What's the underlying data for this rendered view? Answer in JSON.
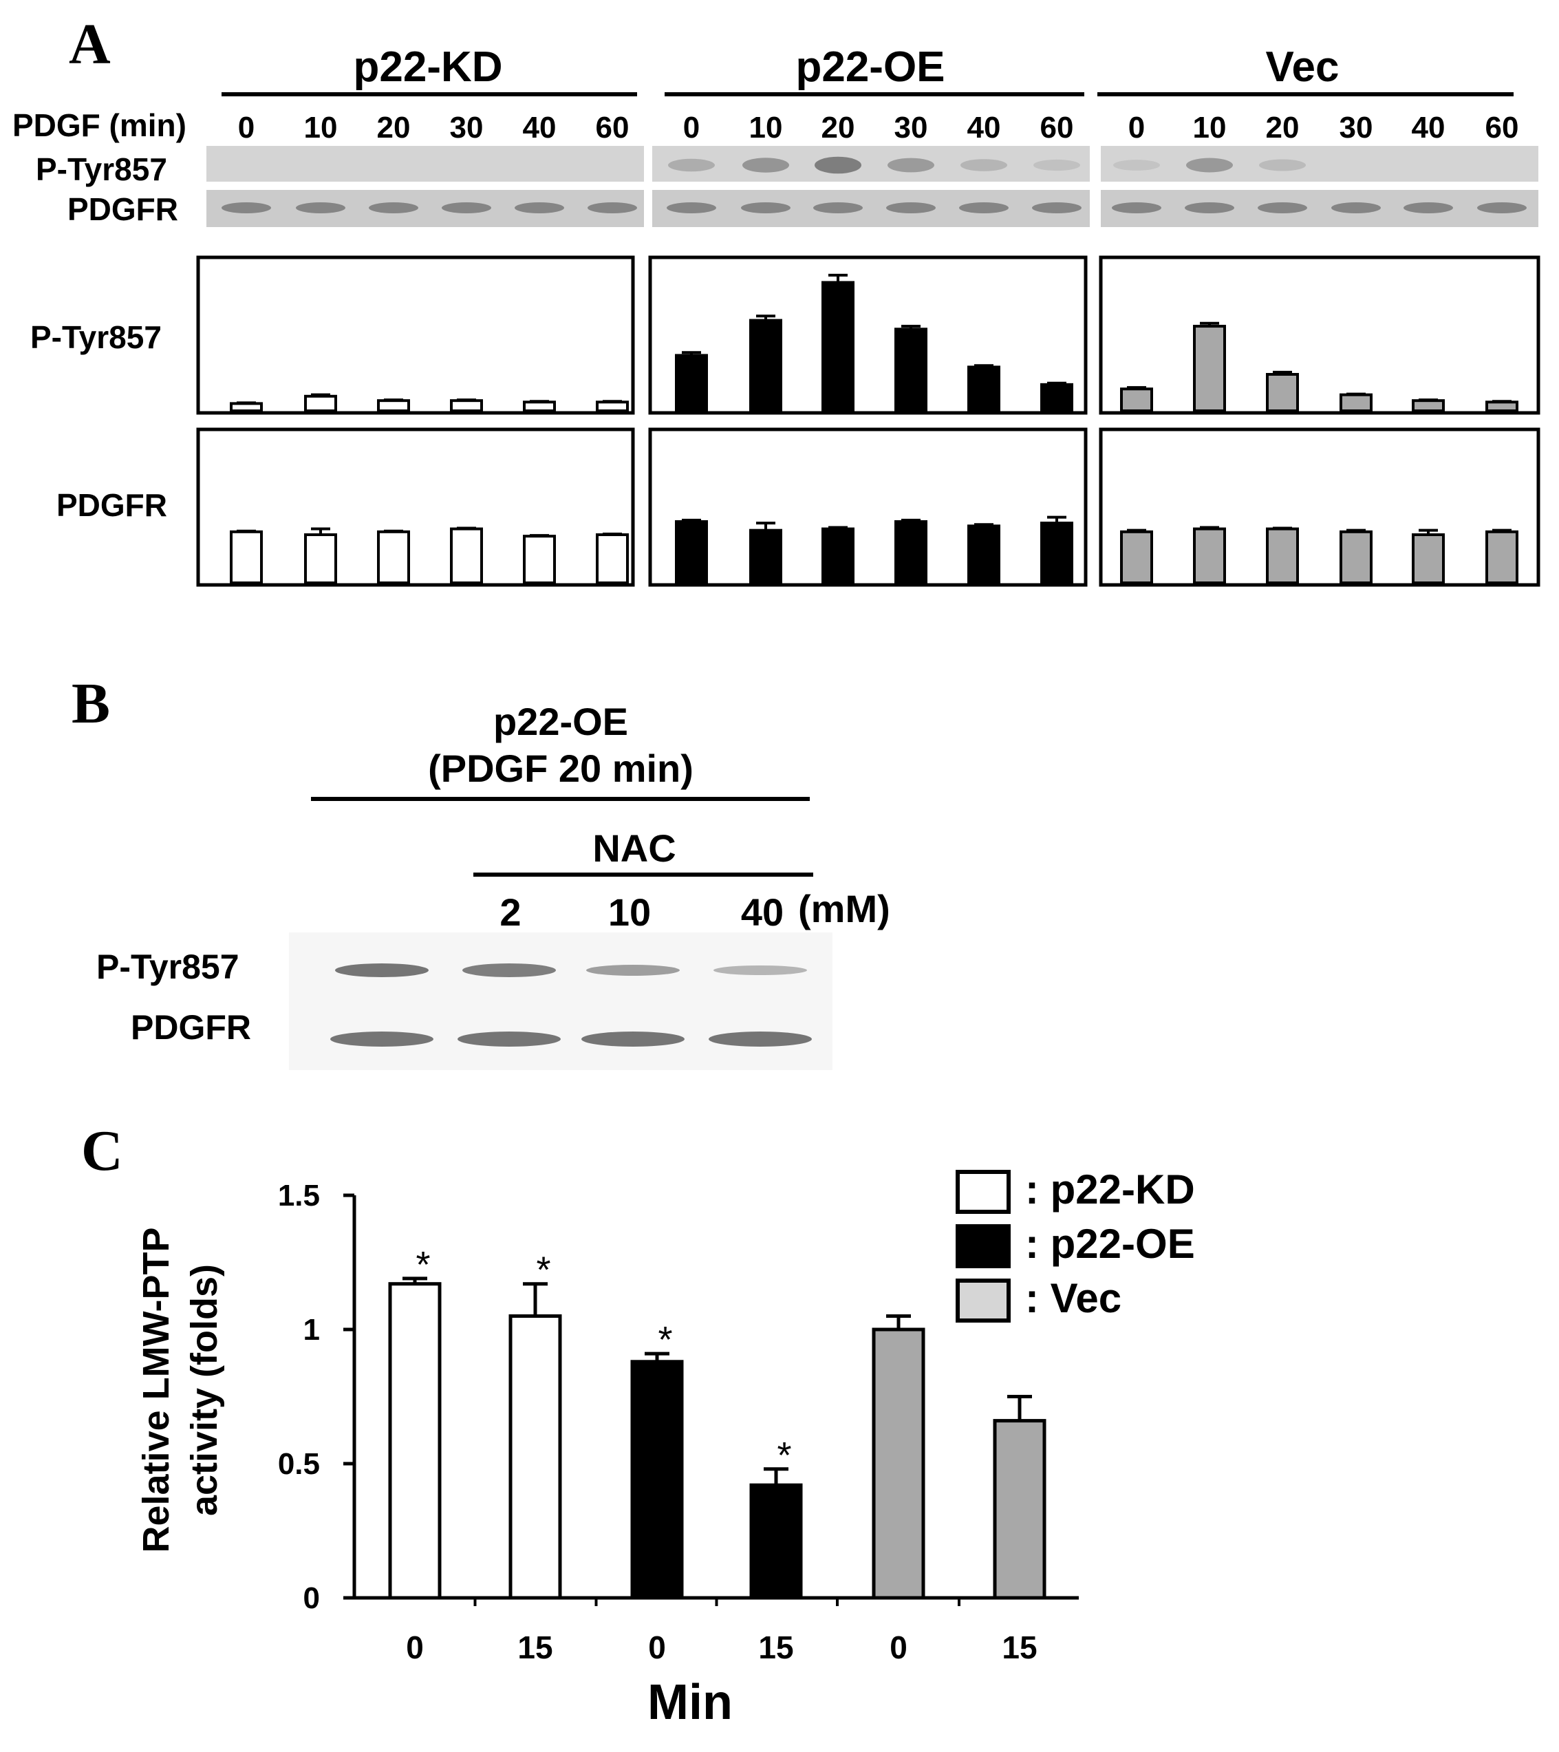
{
  "panelA": {
    "letter": "A",
    "groups": [
      "p22-KD",
      "p22-OE",
      "Vec"
    ],
    "time_label": "PDGF (min)",
    "times": [
      "0",
      "10",
      "20",
      "30",
      "40",
      "60"
    ],
    "blot_labels": [
      "P-Tyr857",
      "PDGFR"
    ],
    "chart_labels": [
      "P-Tyr857",
      "PDGFR"
    ]
  },
  "panelB": {
    "letter": "B",
    "title_line1": "p22-OE",
    "title_line2": "(PDGF 20 min)",
    "nac_label": "NAC",
    "doses": [
      "2",
      "10",
      "40"
    ],
    "unit": "(mM)",
    "blot_labels": [
      "P-Tyr857",
      "PDGFR"
    ]
  },
  "panelC": {
    "letter": "C",
    "ylabel_line1": "Relative LMW-PTP",
    "ylabel_line2": "activity (folds)",
    "xlabel": "Min",
    "yticks": [
      "1.5",
      "1",
      "0.5",
      "0"
    ],
    "legend": [
      ": p22-KD",
      ": p22-OE",
      ": Vec"
    ]
  },
  "colors": {
    "kd": "#ffffff",
    "oe": "#000000",
    "vec": "#a8a8a8",
    "blot_bg": "#cfcfcf",
    "band": "#6e6e6e"
  },
  "chart_data": [
    {
      "type": "bar",
      "title": "P-Tyr857",
      "x": [
        "0",
        "10",
        "20",
        "30",
        "40",
        "60"
      ],
      "series": [
        {
          "name": "p22-KD",
          "values": [
            0.05,
            0.1,
            0.07,
            0.07,
            0.06,
            0.06
          ],
          "errors": [
            0.005,
            0.01,
            0.005,
            0.005,
            0.005,
            0.005
          ]
        },
        {
          "name": "p22-OE",
          "values": [
            0.38,
            0.62,
            0.88,
            0.56,
            0.3,
            0.18
          ],
          "errors": [
            0.02,
            0.03,
            0.05,
            0.02,
            0.01,
            0.01
          ]
        },
        {
          "name": "Vec",
          "values": [
            0.15,
            0.58,
            0.25,
            0.11,
            0.07,
            0.06
          ],
          "errors": [
            0.01,
            0.02,
            0.015,
            0.005,
            0.005,
            0.005
          ]
        }
      ],
      "ylim": [
        0,
        1
      ]
    },
    {
      "type": "bar",
      "title": "PDGFR",
      "x": [
        "0",
        "10",
        "20",
        "30",
        "40",
        "60"
      ],
      "series": [
        {
          "name": "p22-KD",
          "values": [
            0.35,
            0.33,
            0.35,
            0.37,
            0.32,
            0.33
          ],
          "errors": [
            0.005,
            0.04,
            0.005,
            0.005,
            0.005,
            0.005
          ]
        },
        {
          "name": "p22-OE",
          "values": [
            0.42,
            0.36,
            0.37,
            0.42,
            0.39,
            0.41
          ],
          "errors": [
            0.01,
            0.05,
            0.01,
            0.01,
            0.01,
            0.04
          ]
        },
        {
          "name": "Vec",
          "values": [
            0.35,
            0.37,
            0.37,
            0.35,
            0.33,
            0.35
          ],
          "errors": [
            0.01,
            0.01,
            0.005,
            0.01,
            0.03,
            0.01
          ]
        }
      ],
      "ylim": [
        0,
        1
      ]
    },
    {
      "type": "bar",
      "categories": [
        "0",
        "15",
        "0",
        "15",
        "0",
        "15"
      ],
      "groups": [
        "p22-KD",
        "p22-KD",
        "p22-OE",
        "p22-OE",
        "Vec",
        "Vec"
      ],
      "values": [
        1.17,
        1.05,
        0.88,
        0.42,
        1.0,
        0.66
      ],
      "errors": [
        0.02,
        0.12,
        0.03,
        0.06,
        0.05,
        0.09
      ],
      "significant": [
        true,
        true,
        true,
        true,
        false,
        false
      ],
      "ylabel": "Relative LMW-PTP activity (folds)",
      "xlabel": "Min",
      "ylim": [
        0,
        1.5
      ],
      "legend_position": "top-right"
    }
  ]
}
